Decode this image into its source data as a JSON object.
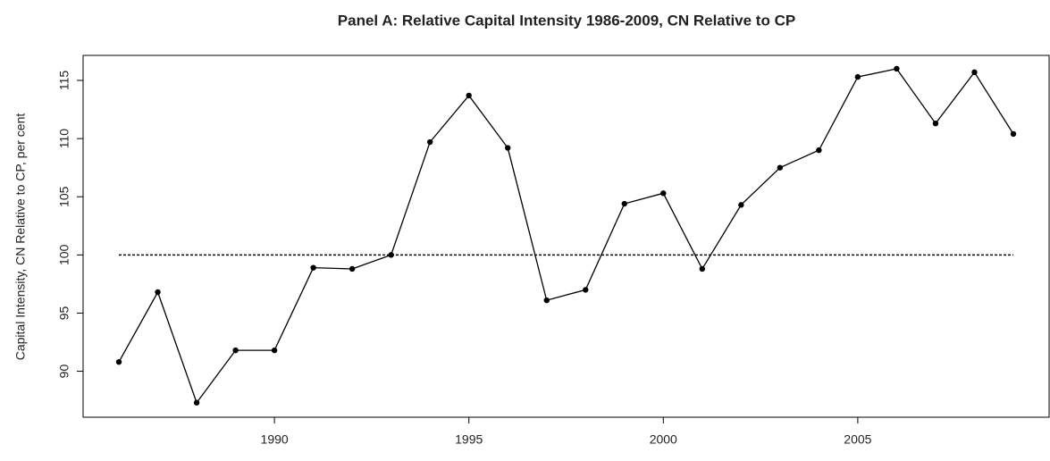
{
  "chart_data": {
    "type": "line",
    "title": "Panel A: Relative Capital Intensity 1986-2009, CN Relative to CP",
    "y_label": "Capital Intensity, CN Relative to CP, per cent",
    "x": [
      1986,
      1987,
      1988,
      1989,
      1990,
      1991,
      1992,
      1993,
      1994,
      1995,
      1996,
      1997,
      1998,
      1999,
      2000,
      2001,
      2002,
      2003,
      2004,
      2005,
      2006,
      2007,
      2008,
      2009
    ],
    "series": [
      {
        "name": "Relative capital intensity",
        "color": "#000000",
        "values": [
          90.8,
          96.8,
          87.3,
          91.8,
          91.8,
          98.9,
          98.8,
          100.0,
          109.7,
          113.7,
          109.2,
          96.1,
          97.0,
          104.4,
          105.3,
          98.8,
          104.3,
          107.5,
          109.0,
          115.3,
          116.0,
          111.3,
          115.7,
          110.4
        ]
      }
    ],
    "reference_line": 100,
    "xlim": [
      1985.08,
      2009.92
    ],
    "ylim": [
      86.05,
      117.15
    ],
    "xticks": [
      1990,
      1995,
      2000,
      2005
    ],
    "yticks": [
      90,
      95,
      100,
      105,
      110,
      115
    ]
  }
}
